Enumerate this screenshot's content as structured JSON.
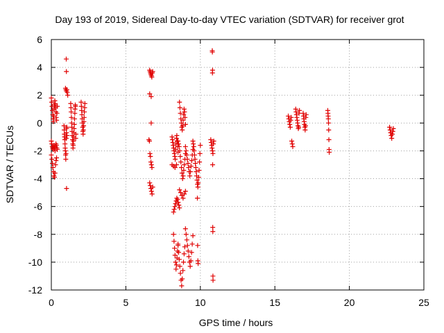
{
  "chart_data": {
    "type": "scatter",
    "title": "Day 193 of 2019, Sidereal Day-to-day VTEC variation (SDTVAR) for receiver grot",
    "xlabel": "GPS time / hours",
    "ylabel": "SDTVAR / TECUs",
    "xlim": [
      0,
      25
    ],
    "ylim": [
      -12,
      6
    ],
    "xticks": [
      0,
      5,
      10,
      15,
      20,
      25
    ],
    "yticks": [
      -12,
      -10,
      -8,
      -6,
      -4,
      -2,
      0,
      2,
      4,
      6
    ],
    "grid": true,
    "marker": "+",
    "color": "#e00000",
    "series": [
      {
        "name": "SDTVAR",
        "segments": [
          {
            "x0": 0.0,
            "x1": 0.4,
            "y": [
              1.8,
              1.5,
              1.2,
              0.9,
              0.6,
              0.3,
              0.1,
              0.5,
              1.0,
              1.3,
              1.6,
              1.4,
              1.1,
              0.8,
              0.4,
              0.2,
              0.7,
              1.2
            ]
          },
          {
            "x0": 0.0,
            "x1": 0.4,
            "y": [
              -1.3,
              -1.5,
              -1.7,
              -1.8,
              -1.9,
              -1.7,
              -1.6,
              -1.8,
              -2.0,
              -1.7,
              -1.5,
              -1.6,
              -1.8,
              -1.9
            ]
          },
          {
            "x0": 0.0,
            "x1": 0.35,
            "y": [
              -2.3,
              -2.6,
              -2.9,
              -3.2,
              -3.5,
              -3.8,
              -3.9,
              -3.6,
              -3.0,
              -2.7,
              -2.5
            ]
          },
          {
            "x0": 0.85,
            "x1": 1.05,
            "y": [
              -0.2,
              -0.5,
              -0.8,
              -1.0,
              -1.2,
              -1.5,
              -1.8,
              -2.0,
              -2.3,
              -2.6,
              -2.2,
              -1.1,
              -0.7,
              -0.4,
              -0.3,
              -0.9
            ]
          },
          {
            "x0": 0.95,
            "x1": 1.1,
            "y": [
              2.5,
              2.4,
              2.3,
              2.4,
              2.2,
              2.0
            ]
          },
          {
            "x0": 1.0,
            "x1": 1.02,
            "y": [
              4.6,
              3.7,
              -4.7
            ]
          },
          {
            "x0": 1.3,
            "x1": 1.65,
            "y": [
              1.4,
              1.1,
              0.8,
              0.4,
              0.0,
              -0.3,
              -0.6,
              -0.9,
              -1.2,
              -1.5,
              -1.8,
              -1.6,
              -1.3,
              -1.0,
              -0.7,
              -0.4,
              -0.1,
              0.3,
              0.7,
              1.0,
              1.3,
              1.2,
              -1.1,
              -0.8
            ]
          },
          {
            "x0": 2.0,
            "x1": 2.25,
            "y": [
              1.5,
              1.2,
              0.9,
              0.6,
              0.3,
              0.0,
              -0.3,
              -0.6,
              -0.8,
              -0.5,
              -0.2,
              0.1,
              0.4,
              0.8,
              1.1,
              1.4
            ]
          },
          {
            "x0": 6.6,
            "x1": 6.8,
            "y": [
              3.8,
              3.7,
              3.6,
              3.5,
              3.4,
              3.3,
              3.6,
              3.7
            ]
          },
          {
            "x0": 6.6,
            "x1": 6.7,
            "y": [
              2.1,
              1.9
            ]
          },
          {
            "x0": 6.55,
            "x1": 6.75,
            "y": [
              -1.2,
              -1.3,
              -2.2,
              -2.4,
              -2.8,
              -3.0,
              -3.2
            ]
          },
          {
            "x0": 6.6,
            "x1": 6.8,
            "y": [
              -4.3,
              -4.5,
              -4.7,
              -4.9,
              -5.1,
              -4.6
            ]
          },
          {
            "x0": 6.7,
            "x1": 6.72,
            "y": [
              0.0
            ]
          },
          {
            "x0": 8.1,
            "x1": 8.5,
            "y": [
              -1.0,
              -1.2,
              -1.4,
              -1.6,
              -1.8,
              -2.0,
              -2.2,
              -2.4,
              -2.6,
              -1.9,
              -1.5,
              -1.1,
              -0.9,
              -1.3,
              -1.7,
              -2.1
            ]
          },
          {
            "x0": 8.1,
            "x1": 8.4,
            "y": [
              -3.0,
              -3.1,
              -3.2,
              -3.0
            ]
          },
          {
            "x0": 8.2,
            "x1": 8.6,
            "y": [
              -6.4,
              -6.2,
              -6.0,
              -5.8,
              -5.6,
              -5.4,
              -5.5,
              -5.7,
              -5.9,
              -6.1
            ]
          },
          {
            "x0": 8.2,
            "x1": 8.5,
            "y": [
              -8.0,
              -8.5,
              -9.0,
              -9.5,
              -10.0,
              -10.5,
              -10.2,
              -9.7,
              -9.2,
              -8.7
            ]
          },
          {
            "x0": 8.6,
            "x1": 9.0,
            "y": [
              1.5,
              1.1,
              0.7,
              0.3,
              0.0,
              -0.3,
              -0.5,
              -0.2,
              0.2,
              0.6,
              1.0,
              0.8,
              0.4,
              -0.1
            ]
          },
          {
            "x0": 8.5,
            "x1": 9.0,
            "y": [
              -1.3,
              -1.5,
              -1.7,
              -2.0,
              -2.4,
              -2.8,
              -3.2,
              -3.6,
              -4.0,
              -3.8,
              -3.4,
              -3.0,
              -2.6,
              -2.2
            ]
          },
          {
            "x0": 8.6,
            "x1": 9.0,
            "y": [
              -4.8,
              -5.0,
              -5.2,
              -5.4,
              -5.1,
              -4.9
            ]
          },
          {
            "x0": 8.5,
            "x1": 8.95,
            "y": [
              -8.8,
              -9.3,
              -9.8,
              -10.3,
              -10.8,
              -11.3,
              -11.7,
              -11.2,
              -10.6,
              -10.0,
              -9.4,
              -8.9
            ]
          },
          {
            "x0": 9.0,
            "x1": 9.5,
            "y": [
              -1.7,
              -2.0,
              -2.3,
              -2.6,
              -2.9,
              -3.2,
              -3.5,
              -3.8,
              -3.5,
              -3.1,
              -2.7,
              -2.3,
              -1.9
            ]
          },
          {
            "x0": 9.0,
            "x1": 9.5,
            "y": [
              -7.6,
              -8.0,
              -8.4,
              -8.8,
              -9.2,
              -9.6,
              -10.0,
              -10.3,
              -9.9,
              -9.3,
              -8.7,
              -8.1
            ]
          },
          {
            "x0": 9.5,
            "x1": 10.0,
            "y": [
              -1.3,
              -1.5,
              -1.7,
              -2.0,
              -2.3,
              -2.6,
              -2.9,
              -3.2,
              -3.5,
              -3.8,
              -4.1,
              -4.4,
              -4.6,
              -4.3,
              -3.9,
              -3.4,
              -2.8,
              -2.2,
              -1.6
            ]
          },
          {
            "x0": 9.8,
            "x1": 9.85,
            "y": [
              -5.4,
              -8.8,
              -9.9,
              -10.1
            ]
          },
          {
            "x0": 10.7,
            "x1": 10.9,
            "y": [
              -1.2,
              -1.4,
              -1.6,
              -1.8,
              -2.0,
              -2.2,
              -1.5,
              -1.3
            ]
          },
          {
            "x0": 10.8,
            "x1": 10.85,
            "y": [
              5.2,
              5.1,
              3.6,
              3.8,
              -3.0,
              -7.5,
              -7.8,
              -11.0,
              -11.3
            ]
          },
          {
            "x0": 15.9,
            "x1": 16.2,
            "y": [
              0.5,
              0.3,
              0.1,
              -0.1,
              -0.3,
              0.2,
              0.4,
              -1.3,
              -1.5,
              -1.7
            ]
          },
          {
            "x0": 16.4,
            "x1": 16.65,
            "y": [
              1.0,
              0.8,
              0.6,
              0.4,
              0.2,
              0.0,
              -0.2,
              -0.4,
              -0.3,
              0.7,
              0.9
            ]
          },
          {
            "x0": 16.9,
            "x1": 17.1,
            "y": [
              0.7,
              0.5,
              0.3,
              0.1,
              -0.1,
              -0.3,
              -0.5,
              -0.2,
              0.4,
              0.6
            ]
          },
          {
            "x0": 18.55,
            "x1": 18.65,
            "y": [
              0.9,
              0.7,
              0.5,
              0.3,
              0.0,
              -0.5,
              -1.2,
              -1.9,
              -2.1
            ]
          },
          {
            "x0": 22.7,
            "x1": 22.95,
            "y": [
              -0.3,
              -0.5,
              -0.7,
              -0.9,
              -1.1,
              -0.8,
              -0.6,
              -0.4
            ]
          }
        ]
      }
    ]
  }
}
